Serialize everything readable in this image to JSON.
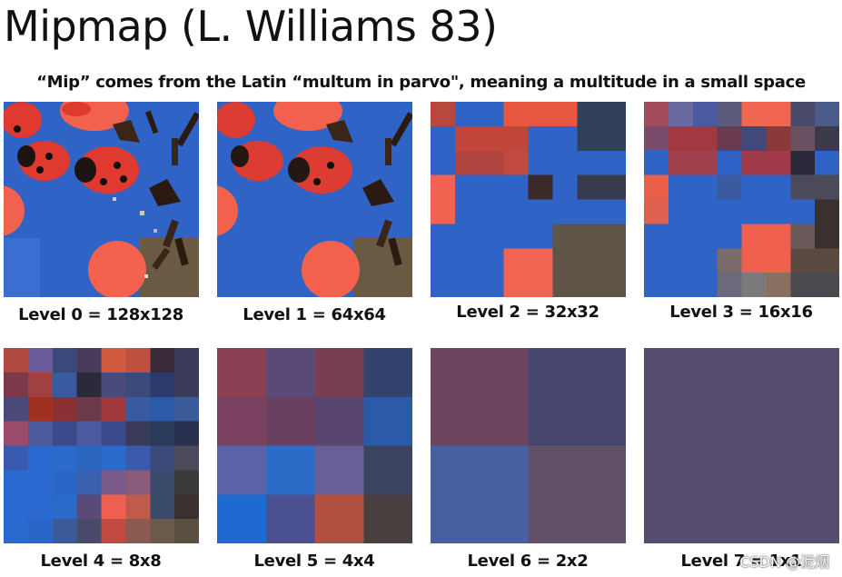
{
  "title": "Mipmap (L. Williams 83)",
  "subtitle": "“Mip” comes from the Latin “multum in parvo\", meaning a multitude in a small space",
  "levels": [
    {
      "label": "Level 0 = 128x128"
    },
    {
      "label": "Level 1 = 64x64"
    },
    {
      "label": "Level 2 = 32x32"
    },
    {
      "label": "Level 3 = 16x16"
    },
    {
      "label": "Level 4 = 8x8"
    },
    {
      "label": "Level 5 = 4x4"
    },
    {
      "label": "Level 6 = 2x2"
    },
    {
      "label": "Level 7 = 1x1"
    }
  ],
  "watermark": "CSDN @泥烟",
  "colors": {
    "blue": "#2f63c6",
    "ladybug_red": "#e8443a",
    "candy_orange": "#f2604e",
    "chocolate": "#3a2518"
  }
}
